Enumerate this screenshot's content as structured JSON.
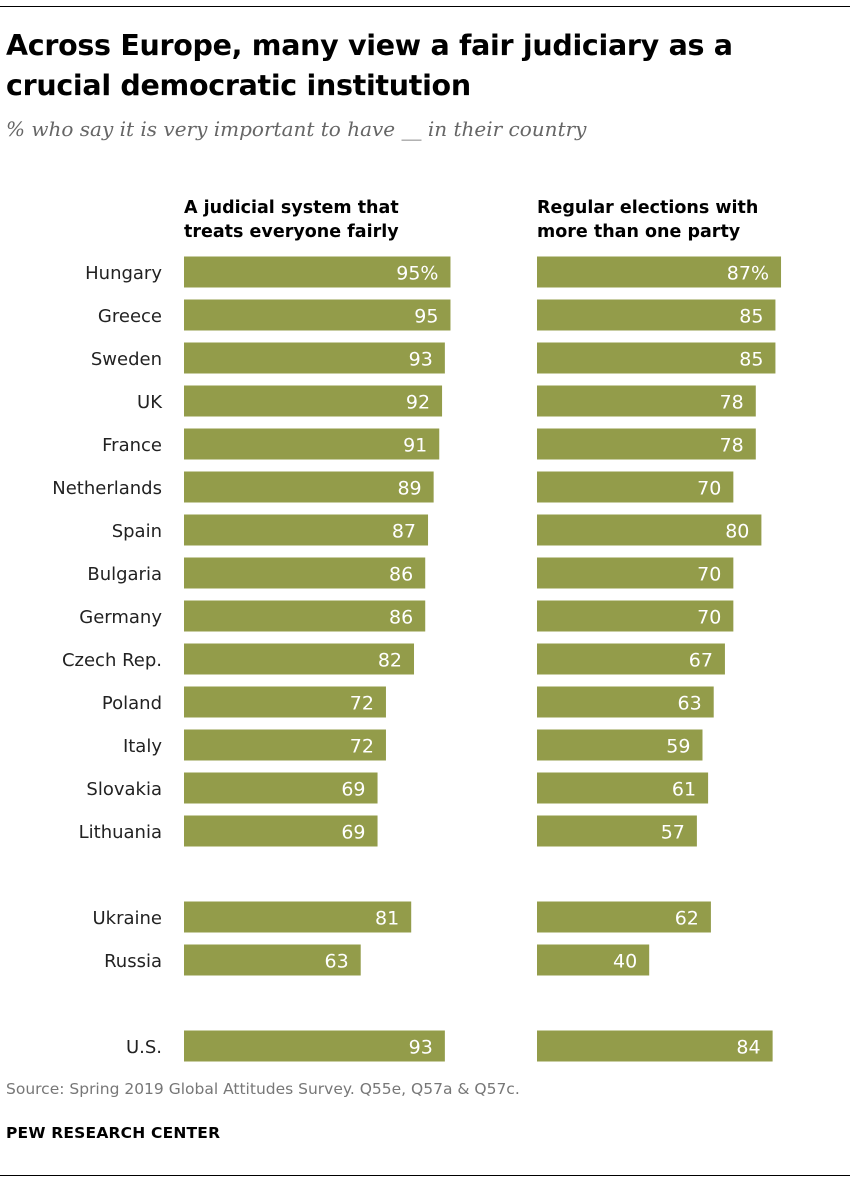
{
  "header": {
    "title": "Across Europe, many view a fair judiciary as a crucial democratic institution",
    "subtitle": "% who say it is very important to have __ in their country"
  },
  "footer": {
    "source": "Source: Spring 2019 Global Attitudes Survey. Q55e, Q57a & Q57c.",
    "organization": "PEW RESEARCH CENTER"
  },
  "colors": {
    "bar": "#939c4a",
    "bar_label": "#ffffff",
    "category": "#222222"
  },
  "chart_data": {
    "type": "bar",
    "orientation": "horizontal",
    "title": "Across Europe, many view a fair judiciary as a crucial democratic institution",
    "subtitle": "% who say it is very important to have __ in their country",
    "categories": [
      "Hungary",
      "Greece",
      "Sweden",
      "UK",
      "France",
      "Netherlands",
      "Spain",
      "Bulgaria",
      "Germany",
      "Czech Rep.",
      "Poland",
      "Italy",
      "Slovakia",
      "Lithuania",
      "Ukraine",
      "Russia",
      "U.S."
    ],
    "category_groups": [
      14,
      2,
      1
    ],
    "series": [
      {
        "name": "A judicial system that treats everyone fairly",
        "values": [
          95,
          95,
          93,
          92,
          91,
          89,
          87,
          86,
          86,
          82,
          72,
          72,
          69,
          69,
          81,
          63,
          93
        ],
        "labels": [
          "95%",
          "95",
          "93",
          "92",
          "91",
          "89",
          "87",
          "86",
          "86",
          "82",
          "72",
          "72",
          "69",
          "69",
          "81",
          "63",
          "93"
        ]
      },
      {
        "name": "Regular elections with more than one party",
        "values": [
          87,
          85,
          85,
          78,
          78,
          70,
          80,
          70,
          70,
          67,
          63,
          59,
          61,
          57,
          62,
          40,
          84
        ],
        "labels": [
          "87%",
          "85",
          "85",
          "78",
          "78",
          "70",
          "80",
          "70",
          "70",
          "67",
          "63",
          "59",
          "61",
          "57",
          "62",
          "40",
          "84"
        ]
      }
    ],
    "xlim": [
      0,
      100
    ],
    "grid": false,
    "legend": "none"
  }
}
